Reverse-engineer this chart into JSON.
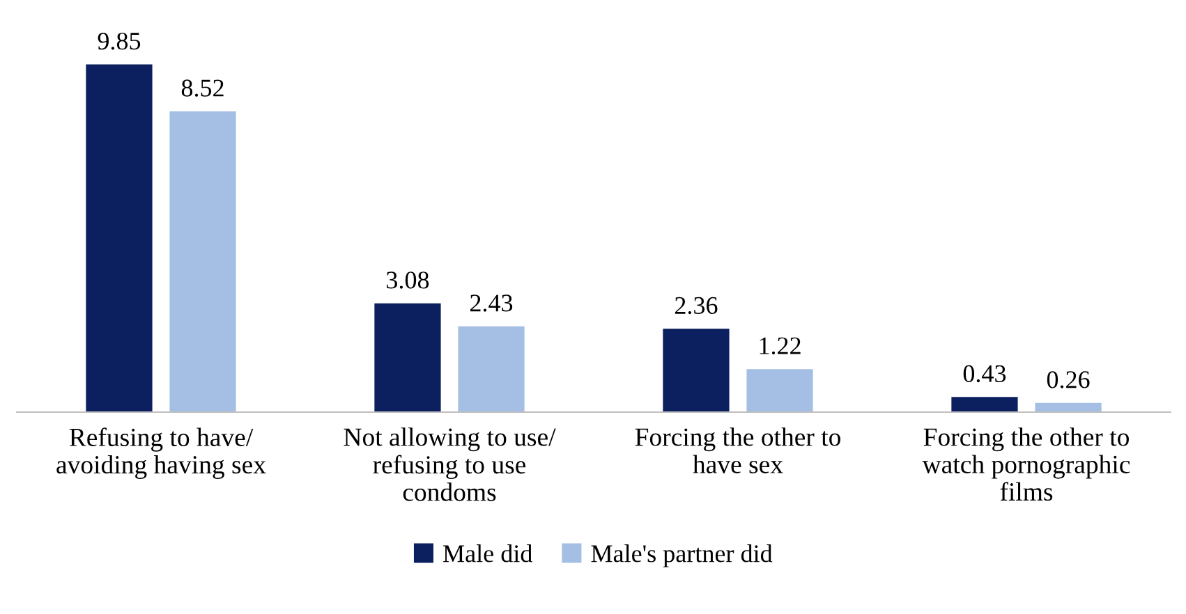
{
  "chart_data": {
    "type": "bar",
    "categories": [
      "Refusing to have/\navoiding having sex",
      "Not allowing to use/\nrefusing to use\ncondoms",
      "Forcing the other to\nhave sex",
      "Forcing the other to\nwatch pornographic\nfilms"
    ],
    "series": [
      {
        "name": "Male did",
        "color": "#0c1f5e",
        "values": [
          9.85,
          3.08,
          2.36,
          0.43
        ]
      },
      {
        "name": "Male's partner did",
        "color": "#a4bfe3",
        "values": [
          8.52,
          2.43,
          1.22,
          0.26
        ]
      }
    ],
    "data_labels": true,
    "legend": "bottom",
    "grid": false
  }
}
